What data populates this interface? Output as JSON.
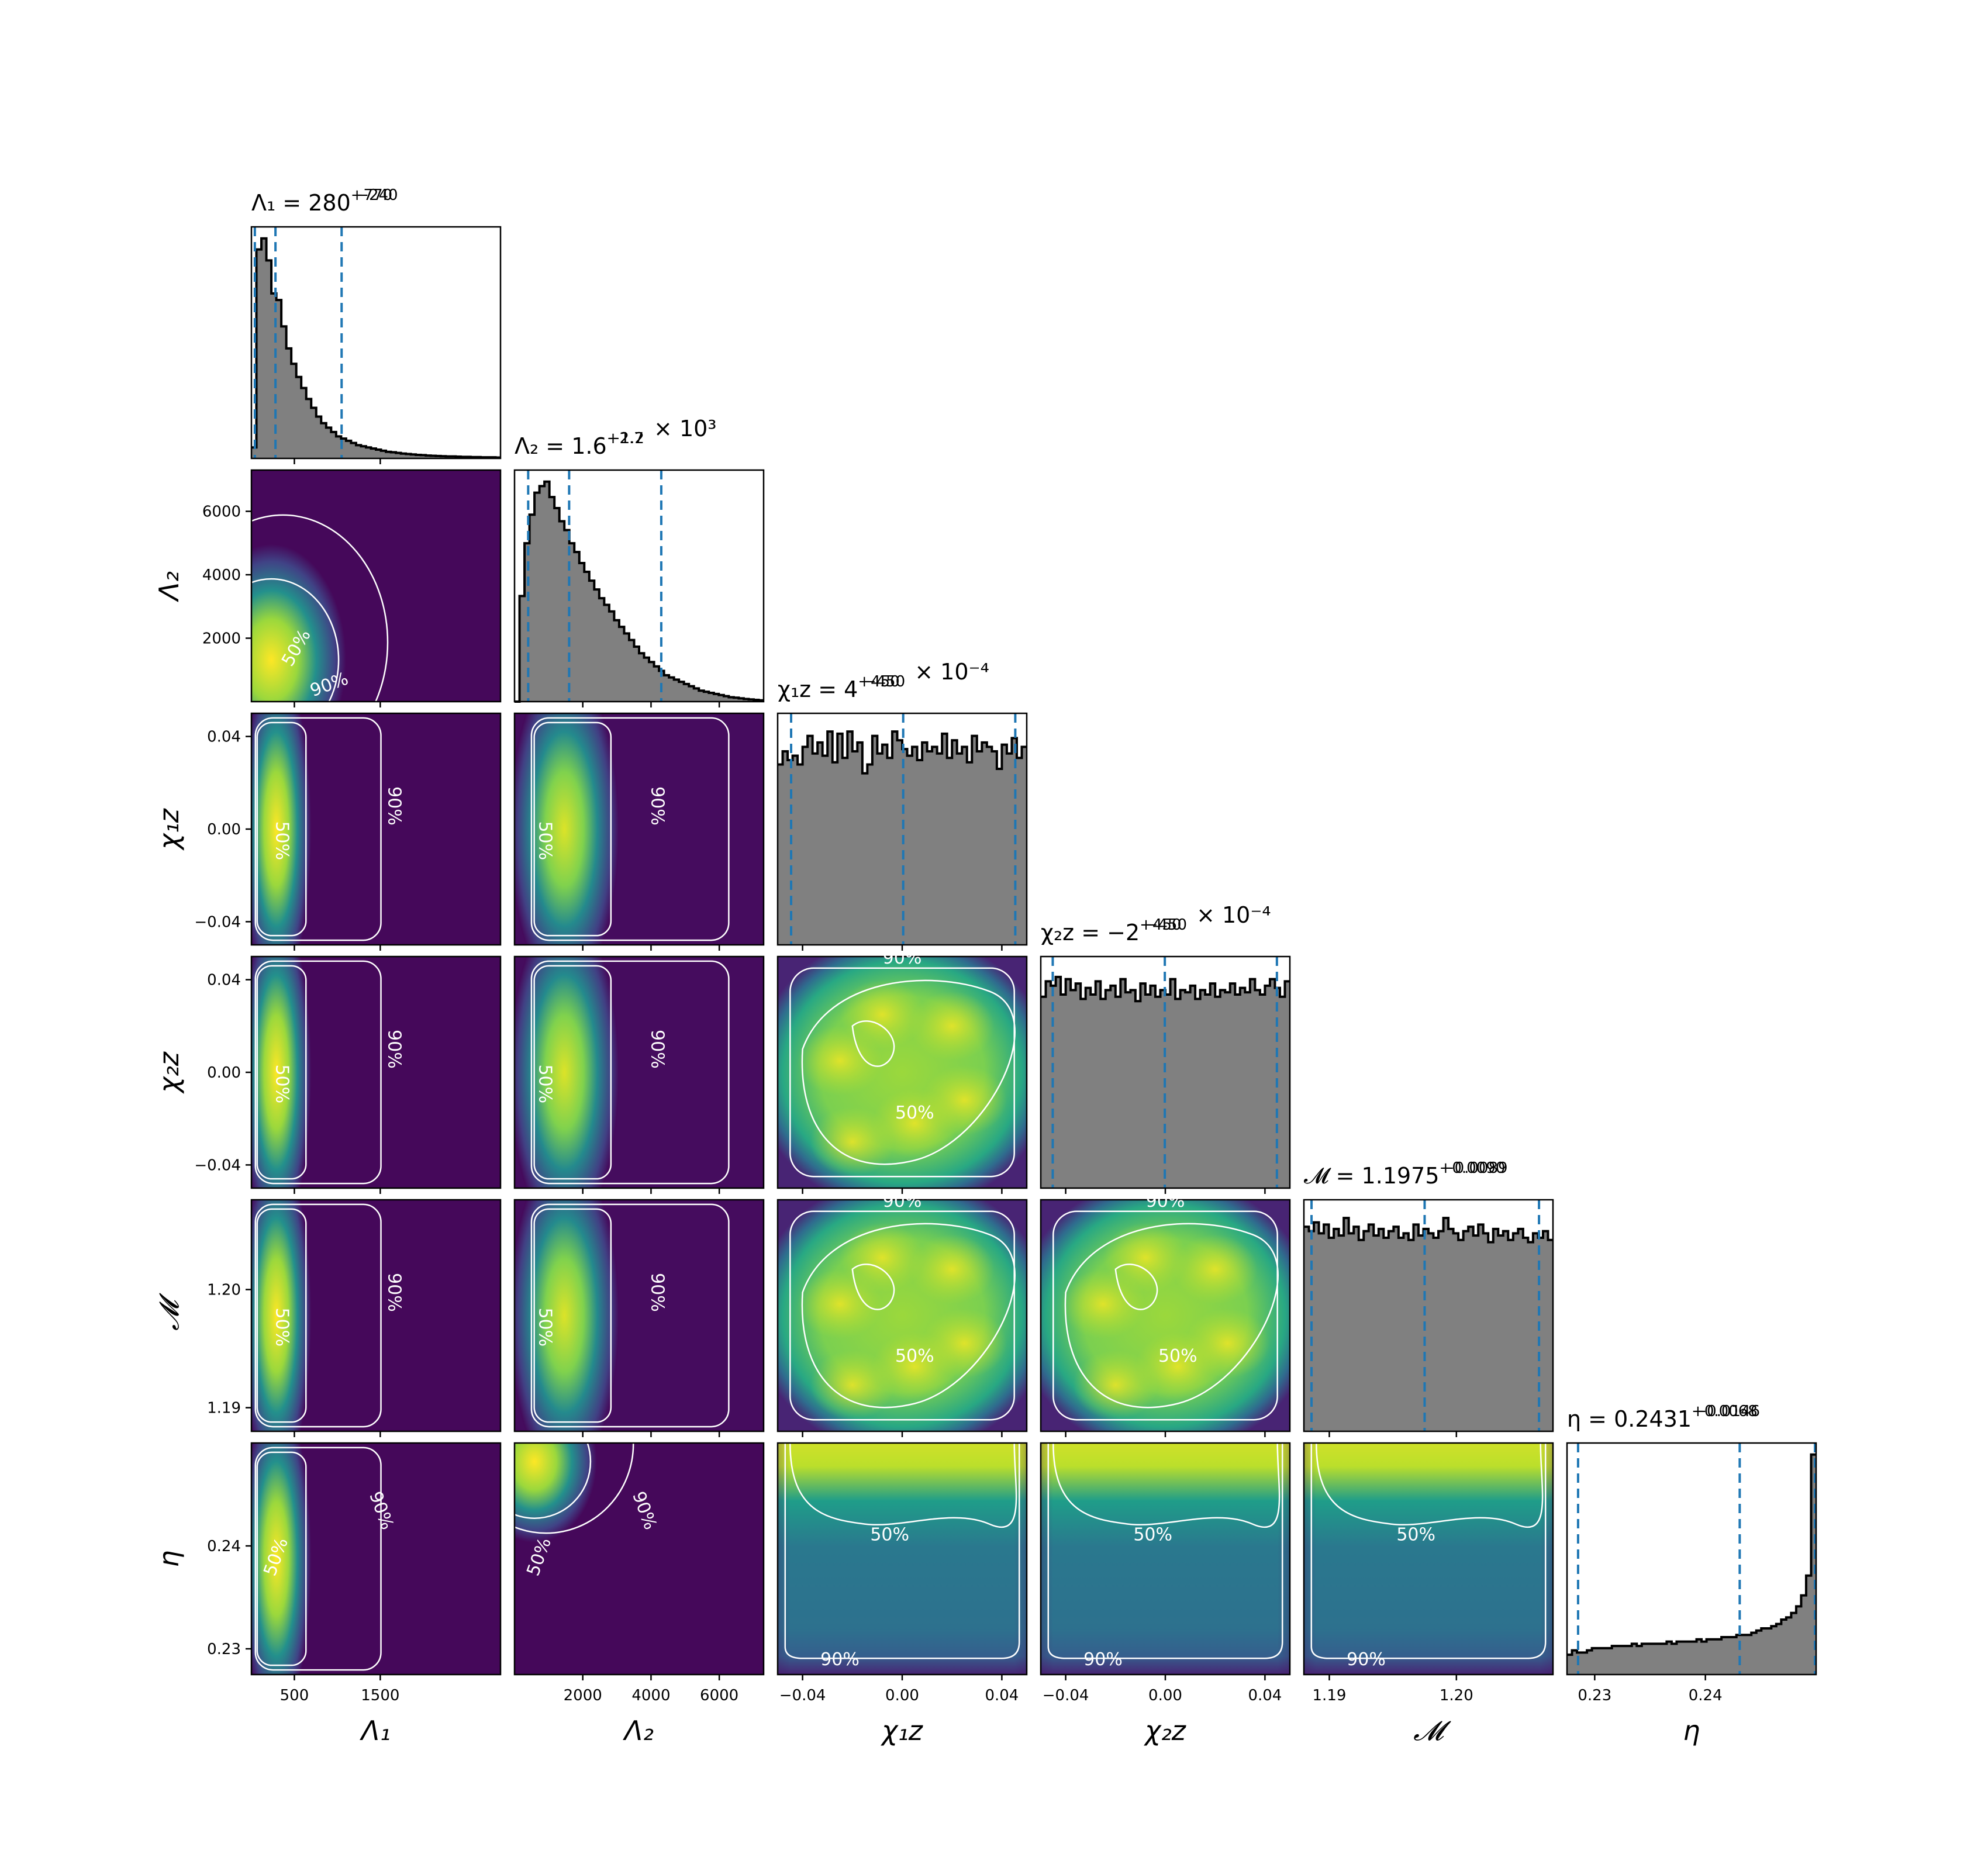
{
  "chart_data": {
    "type": "corner",
    "params": [
      {
        "key": "L1",
        "label": "Λ₁",
        "range": [
          0,
          2900
        ],
        "ticks": [
          500,
          1500
        ],
        "tick_labels": [
          "500",
          "1500"
        ]
      },
      {
        "key": "L2",
        "label": "Λ₂",
        "range": [
          0,
          7300
        ],
        "ticks": [
          2000,
          4000,
          6000
        ],
        "tick_labels": [
          "2000",
          "4000",
          "6000"
        ]
      },
      {
        "key": "chi1z",
        "label": "χ₁z",
        "range": [
          -0.05,
          0.05
        ],
        "ticks": [
          -0.04,
          0.0,
          0.04
        ],
        "tick_labels": [
          "−0.04",
          "0.00",
          "0.04"
        ]
      },
      {
        "key": "chi2z",
        "label": "χ₂z",
        "range": [
          -0.05,
          0.05
        ],
        "ticks": [
          -0.04,
          0.0,
          0.04
        ],
        "tick_labels": [
          "−0.04",
          "0.00",
          "0.04"
        ]
      },
      {
        "key": "Mc",
        "label": "𝓜",
        "range": [
          1.188,
          1.2076
        ],
        "ticks": [
          1.19,
          1.2
        ],
        "tick_labels": [
          "1.19",
          "1.20"
        ]
      },
      {
        "key": "eta",
        "label": "η",
        "range": [
          0.2275,
          0.25
        ],
        "ticks": [
          0.23,
          0.24
        ],
        "tick_labels": [
          "0.23",
          "0.24"
        ]
      }
    ],
    "titles": [
      {
        "base": "Λ₁ = 280",
        "sup": "+770",
        "sub": "−240",
        "suffix": ""
      },
      {
        "base": "Λ₂ = 1.6",
        "sup": "+2.7",
        "sub": "−1.2",
        "suffix": " × 10³"
      },
      {
        "base": "χ₁z = 4",
        "sup": "+450",
        "sub": "−450",
        "suffix": " × 10⁻⁴"
      },
      {
        "base": "χ₂z = −2",
        "sup": "+450",
        "sub": "−450",
        "suffix": " × 10⁻⁴"
      },
      {
        "base": "𝓜 = 1.1975",
        "sup": "+0.0090",
        "sub": "−0.0089",
        "suffix": ""
      },
      {
        "base": "η = 0.2431",
        "sup": "+0.0068",
        "sub": "−0.0146",
        "suffix": ""
      }
    ],
    "quantile_lines": [
      [
        40,
        280,
        1050
      ],
      [
        400,
        1600,
        4300
      ],
      [
        -0.0446,
        0.0004,
        0.0454
      ],
      [
        -0.0452,
        -0.0002,
        0.0448
      ],
      [
        1.1886,
        1.1975,
        1.2065
      ],
      [
        0.2285,
        0.2431,
        0.2499
      ]
    ],
    "histograms": [
      [
        0.05,
        0.95,
        1.0,
        0.9,
        0.75,
        0.72,
        0.6,
        0.5,
        0.43,
        0.37,
        0.32,
        0.27,
        0.23,
        0.19,
        0.16,
        0.14,
        0.12,
        0.1,
        0.09,
        0.08,
        0.07,
        0.06,
        0.055,
        0.05,
        0.045,
        0.04,
        0.035,
        0.03,
        0.028,
        0.025,
        0.022,
        0.02,
        0.018,
        0.016,
        0.015,
        0.013,
        0.012,
        0.011,
        0.01,
        0.009,
        0.009,
        0.008,
        0.007,
        0.007,
        0.006,
        0.006,
        0.005,
        0.005,
        0.005,
        0.004
      ],
      [
        0.0,
        0.48,
        0.72,
        0.85,
        0.95,
        0.98,
        1.0,
        0.93,
        0.88,
        0.82,
        0.78,
        0.72,
        0.68,
        0.63,
        0.59,
        0.55,
        0.51,
        0.47,
        0.44,
        0.41,
        0.37,
        0.34,
        0.31,
        0.28,
        0.25,
        0.22,
        0.2,
        0.18,
        0.16,
        0.14,
        0.12,
        0.11,
        0.1,
        0.09,
        0.08,
        0.07,
        0.06,
        0.05,
        0.045,
        0.04,
        0.035,
        0.03,
        0.025,
        0.02,
        0.018,
        0.015,
        0.012,
        0.01,
        0.008,
        0.006
      ],
      [
        0.82,
        0.88,
        0.84,
        0.86,
        0.82,
        0.9,
        0.95,
        0.87,
        0.92,
        0.86,
        0.97,
        0.83,
        0.96,
        0.85,
        0.97,
        0.88,
        0.92,
        0.78,
        0.82,
        0.95,
        0.87,
        0.91,
        0.85,
        0.97,
        0.93,
        0.89,
        0.86,
        0.9,
        0.84,
        0.92,
        0.88,
        0.9,
        0.87,
        0.96,
        0.85,
        0.93,
        0.87,
        0.9,
        0.83,
        0.95,
        0.88,
        0.92,
        0.9,
        0.88,
        0.8,
        0.91,
        0.87,
        0.94,
        0.85,
        0.9
      ],
      [
        0.87,
        0.94,
        0.92,
        0.96,
        0.88,
        0.95,
        0.9,
        0.93,
        0.86,
        0.91,
        0.88,
        0.94,
        0.86,
        0.9,
        0.92,
        0.87,
        0.95,
        0.89,
        0.9,
        0.85,
        0.93,
        0.88,
        0.92,
        0.87,
        0.9,
        0.88,
        0.95,
        0.86,
        0.9,
        0.89,
        0.92,
        0.86,
        0.9,
        0.88,
        0.93,
        0.87,
        0.9,
        0.89,
        0.93,
        0.88,
        0.91,
        0.89,
        0.95,
        0.9,
        0.88,
        0.92,
        0.95,
        0.91,
        0.87,
        0.94
      ],
      [
        0.93,
        0.91,
        0.95,
        0.9,
        0.94,
        0.88,
        0.92,
        0.89,
        0.97,
        0.9,
        0.93,
        0.87,
        0.91,
        0.94,
        0.89,
        0.92,
        0.88,
        0.91,
        0.93,
        0.88,
        0.9,
        0.87,
        0.94,
        0.89,
        0.92,
        0.9,
        0.88,
        0.91,
        0.97,
        0.92,
        0.9,
        0.87,
        0.91,
        0.93,
        0.89,
        0.94,
        0.9,
        0.86,
        0.92,
        0.89,
        0.91,
        0.87,
        0.9,
        0.92,
        0.88,
        0.86,
        0.9,
        0.88,
        0.91,
        0.87
      ],
      [
        0.09,
        0.11,
        0.1,
        0.1,
        0.11,
        0.12,
        0.12,
        0.12,
        0.12,
        0.13,
        0.13,
        0.13,
        0.13,
        0.14,
        0.13,
        0.14,
        0.14,
        0.14,
        0.14,
        0.14,
        0.15,
        0.14,
        0.15,
        0.15,
        0.15,
        0.15,
        0.16,
        0.15,
        0.16,
        0.16,
        0.16,
        0.17,
        0.17,
        0.17,
        0.18,
        0.18,
        0.18,
        0.19,
        0.2,
        0.21,
        0.21,
        0.22,
        0.23,
        0.25,
        0.26,
        0.28,
        0.31,
        0.36,
        0.45,
        1.0
      ]
    ],
    "contour_levels": [
      "50%",
      "90%"
    ],
    "grid": false
  },
  "colors": {
    "hist_fill": "#808080",
    "quantile_line": "#1f77b4",
    "contour_line": "#ffffff",
    "colormap": "viridis"
  }
}
